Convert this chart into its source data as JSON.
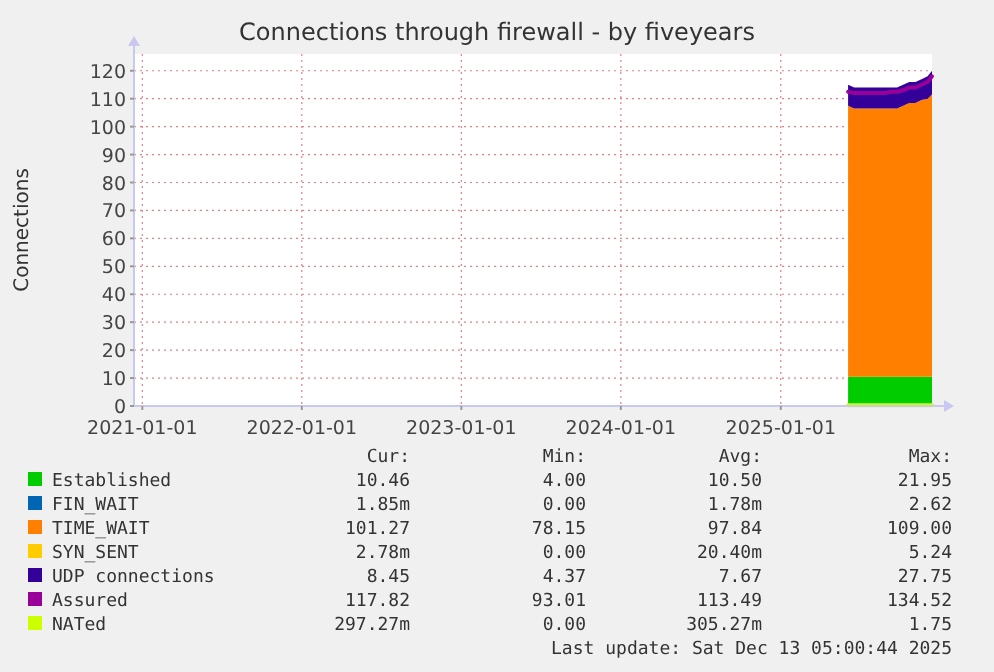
{
  "chart_data": {
    "type": "area",
    "stacked": true,
    "title": "Connections through firewall - by fiveyears",
    "ylabel": "Connections",
    "x": [
      "2025-06-04",
      "2025-06-18",
      "2025-07-02",
      "2025-07-16",
      "2025-07-30",
      "2025-08-13",
      "2025-08-27",
      "2025-09-10",
      "2025-09-24",
      "2025-10-08",
      "2025-10-22",
      "2025-11-05",
      "2025-11-19",
      "2025-12-03",
      "2025-12-13"
    ],
    "xlim": [
      "2020-12-13",
      "2025-12-13"
    ],
    "xticks": [
      "2021-01-01",
      "2022-01-01",
      "2023-01-01",
      "2024-01-01",
      "2025-01-01"
    ],
    "ylim": [
      0,
      126
    ],
    "yticks": [
      0,
      10,
      20,
      30,
      40,
      50,
      60,
      70,
      80,
      90,
      100,
      110,
      120
    ],
    "grid": true,
    "legend": "bottom",
    "series": [
      {
        "name": "Established",
        "color": "#00cc00",
        "values": [
          10.5,
          10.5,
          10.5,
          10.5,
          10.5,
          10.5,
          10.5,
          10.5,
          10.5,
          10.5,
          10.5,
          10.5,
          10.5,
          10.5,
          10.5
        ]
      },
      {
        "name": "FIN_WAIT",
        "color": "#0066b3",
        "values": [
          null,
          null,
          null,
          null,
          null,
          null,
          null,
          null,
          null,
          null,
          null,
          null,
          null,
          null,
          null
        ]
      },
      {
        "name": "TIME_WAIT",
        "color": "#ff8000",
        "values": [
          97,
          96,
          96,
          96,
          96,
          96,
          96,
          96,
          96,
          97,
          98,
          98,
          99,
          99.5,
          101
        ]
      },
      {
        "name": "SYN_SENT",
        "color": "#ffcc00",
        "values": [
          null,
          null,
          null,
          null,
          null,
          null,
          null,
          null,
          null,
          null,
          null,
          null,
          null,
          null,
          null
        ]
      },
      {
        "name": "UDP connections",
        "color": "#330099",
        "values": [
          7.5,
          7.5,
          7.5,
          7.5,
          7.5,
          7.5,
          7.5,
          7.5,
          7.5,
          7.5,
          7.5,
          7.5,
          7.5,
          8,
          8.5
        ]
      },
      {
        "name": "Assured",
        "color": "#990099",
        "type": "line",
        "values": [
          112.5,
          112,
          112,
          112,
          112,
          112,
          112,
          112.5,
          112.5,
          113,
          114,
          114,
          115,
          116,
          118
        ]
      },
      {
        "name": "NATed",
        "color": "#ccff00",
        "type": "line",
        "values": [
          0.3,
          0.3,
          0.3,
          0.3,
          0.3,
          0.3,
          0.3,
          0.3,
          0.3,
          0.3,
          0.3,
          0.3,
          0.3,
          0.3,
          0.3
        ]
      }
    ],
    "annotations": [
      "Cur:",
      "Min:",
      "Avg:",
      "Max:",
      "10.46",
      "4.00",
      "10.50",
      "21.95",
      "1.85m",
      "0.00",
      "1.78m",
      "2.62",
      "101.27",
      "78.15",
      "97.84",
      "109.00",
      "2.78m",
      "0.00",
      "20.40m",
      "5.24",
      "8.45",
      "4.37",
      "7.67",
      "27.75",
      "117.82",
      "93.01",
      "113.49",
      "134.52",
      "297.27m",
      "0.00",
      "305.27m",
      "1.75",
      "Last update: Sat Dec 13 05:00:44 2025"
    ]
  }
}
